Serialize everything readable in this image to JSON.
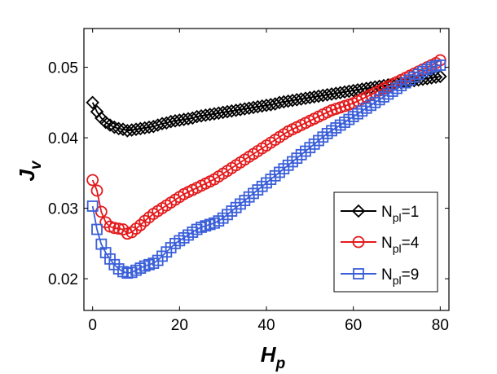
{
  "chart_data": {
    "type": "line",
    "title": "",
    "xlabel": {
      "main": "H",
      "sub": "p"
    },
    "ylabel": {
      "main": "J",
      "sub": "v"
    },
    "xlim": [
      -2,
      82
    ],
    "ylim": [
      0.0155,
      0.0555
    ],
    "xticks": [
      0,
      20,
      40,
      60,
      80
    ],
    "xtick_labels": [
      "0",
      "20",
      "40",
      "60",
      "80"
    ],
    "yticks": [
      0.02,
      0.03,
      0.04,
      0.05
    ],
    "ytick_labels": [
      "0.02",
      "0.03",
      "0.04",
      "0.05"
    ],
    "grid": false,
    "legend_position": "right-lower",
    "x": [
      0,
      1,
      2,
      3,
      4,
      5,
      6,
      7,
      8,
      9,
      10,
      11,
      12,
      13,
      14,
      15,
      16,
      17,
      18,
      19,
      20,
      21,
      22,
      23,
      24,
      25,
      26,
      27,
      28,
      29,
      30,
      31,
      32,
      33,
      34,
      35,
      36,
      37,
      38,
      39,
      40,
      41,
      42,
      43,
      44,
      45,
      46,
      47,
      48,
      49,
      50,
      51,
      52,
      53,
      54,
      55,
      56,
      57,
      58,
      59,
      60,
      61,
      62,
      63,
      64,
      65,
      66,
      67,
      68,
      69,
      70,
      71,
      72,
      73,
      74,
      75,
      76,
      77,
      78,
      79,
      80
    ],
    "series": [
      {
        "name_main": "N",
        "name_sub": "pl",
        "name_suffix": "=1",
        "color": "#000000",
        "marker": "diamond",
        "values": [
          0.045,
          0.0437,
          0.0428,
          0.0422,
          0.0418,
          0.0415,
          0.0413,
          0.0412,
          0.041,
          0.0411,
          0.0412,
          0.0413,
          0.0414,
          0.0415,
          0.0416,
          0.0418,
          0.042,
          0.0421,
          0.0423,
          0.0424,
          0.0425,
          0.0426,
          0.0427,
          0.0428,
          0.043,
          0.0431,
          0.0432,
          0.0433,
          0.0434,
          0.0435,
          0.0436,
          0.0437,
          0.0438,
          0.0439,
          0.044,
          0.0441,
          0.0442,
          0.0443,
          0.0444,
          0.0445,
          0.0446,
          0.0447,
          0.0448,
          0.045,
          0.0451,
          0.0452,
          0.0453,
          0.0454,
          0.0455,
          0.0456,
          0.0457,
          0.0458,
          0.0459,
          0.046,
          0.0461,
          0.0462,
          0.0463,
          0.0464,
          0.0465,
          0.0466,
          0.0467,
          0.0468,
          0.0469,
          0.047,
          0.0471,
          0.0472,
          0.0473,
          0.0474,
          0.0475,
          0.0476,
          0.0477,
          0.0478,
          0.0479,
          0.048,
          0.0481,
          0.0482,
          0.0483,
          0.0484,
          0.0485,
          0.0486,
          0.0487
        ]
      },
      {
        "name_main": "N",
        "name_sub": "pl",
        "name_suffix": "=4",
        "color": "#e41a1c",
        "marker": "circle",
        "values": [
          0.034,
          0.0325,
          0.0295,
          0.028,
          0.0274,
          0.0272,
          0.0271,
          0.027,
          0.0264,
          0.0266,
          0.0271,
          0.0276,
          0.0282,
          0.0287,
          0.0292,
          0.0296,
          0.03,
          0.0304,
          0.0308,
          0.0312,
          0.0316,
          0.032,
          0.0323,
          0.0326,
          0.0329,
          0.0332,
          0.0335,
          0.0338,
          0.0341,
          0.0345,
          0.0349,
          0.0353,
          0.0357,
          0.0361,
          0.0365,
          0.0369,
          0.0373,
          0.0377,
          0.0381,
          0.0385,
          0.0389,
          0.0393,
          0.0397,
          0.0401,
          0.0405,
          0.0409,
          0.0412,
          0.0415,
          0.0418,
          0.0421,
          0.0424,
          0.0427,
          0.043,
          0.0433,
          0.0436,
          0.0439,
          0.0441,
          0.0443,
          0.0445,
          0.0447,
          0.0449,
          0.0452,
          0.0455,
          0.0458,
          0.0461,
          0.0464,
          0.0467,
          0.047,
          0.0473,
          0.0476,
          0.0479,
          0.0482,
          0.0485,
          0.0488,
          0.0491,
          0.0494,
          0.0497,
          0.05,
          0.0503,
          0.0506,
          0.051
        ]
      },
      {
        "name_main": "N",
        "name_sub": "pl",
        "name_suffix": "=9",
        "color": "#3a5fd9",
        "marker": "square",
        "values": [
          0.0303,
          0.027,
          0.0249,
          0.0237,
          0.0228,
          0.022,
          0.0214,
          0.021,
          0.0208,
          0.0209,
          0.0212,
          0.0215,
          0.0218,
          0.022,
          0.0222,
          0.0226,
          0.0232,
          0.0238,
          0.0244,
          0.025,
          0.0254,
          0.0258,
          0.0262,
          0.0266,
          0.027,
          0.0273,
          0.0275,
          0.0277,
          0.0279,
          0.0282,
          0.0286,
          0.0291,
          0.0296,
          0.0301,
          0.0306,
          0.0311,
          0.0316,
          0.0321,
          0.0326,
          0.0331,
          0.0336,
          0.0341,
          0.0346,
          0.0351,
          0.0356,
          0.0361,
          0.0366,
          0.0371,
          0.0376,
          0.0381,
          0.0386,
          0.0391,
          0.0396,
          0.0401,
          0.0406,
          0.041,
          0.0414,
          0.0418,
          0.0422,
          0.0426,
          0.043,
          0.0434,
          0.0438,
          0.0442,
          0.0446,
          0.045,
          0.0454,
          0.0458,
          0.0462,
          0.0466,
          0.047,
          0.0474,
          0.0478,
          0.0482,
          0.0486,
          0.049,
          0.0494,
          0.0497,
          0.05,
          0.0502,
          0.0503
        ]
      }
    ]
  }
}
